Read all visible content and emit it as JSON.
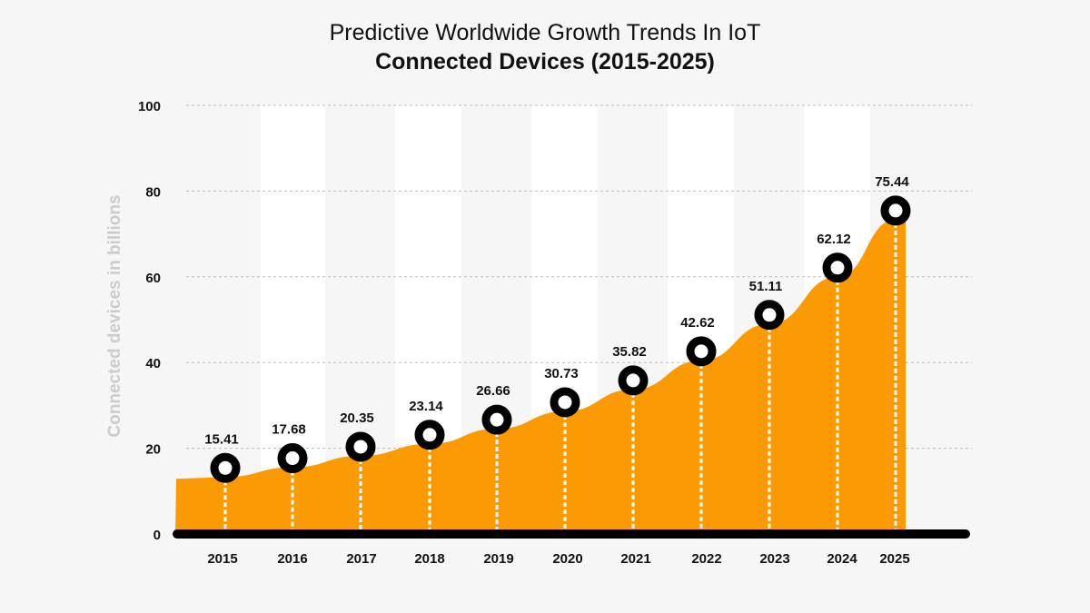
{
  "chart_data": {
    "type": "area",
    "title": "Predictive Worldwide Growth Trends In IoT",
    "subtitle": "Connected Devices (2015-2025)",
    "xlabel": "",
    "ylabel": "Connected devices in billions",
    "categories": [
      "2015",
      "2016",
      "2017",
      "2018",
      "2019",
      "2020",
      "2021",
      "2022",
      "2023",
      "2024",
      "2025"
    ],
    "values": [
      15.41,
      17.68,
      20.35,
      23.14,
      26.66,
      30.73,
      35.82,
      42.62,
      51.11,
      62.12,
      75.44
    ],
    "yticks": [
      0,
      20,
      40,
      60,
      80,
      100
    ],
    "ylim": [
      0,
      100
    ],
    "grid": true,
    "colors": {
      "area": "#fa9b05",
      "marker": "#000000",
      "axis": "#000000",
      "ylabel": "#cccccc"
    }
  }
}
